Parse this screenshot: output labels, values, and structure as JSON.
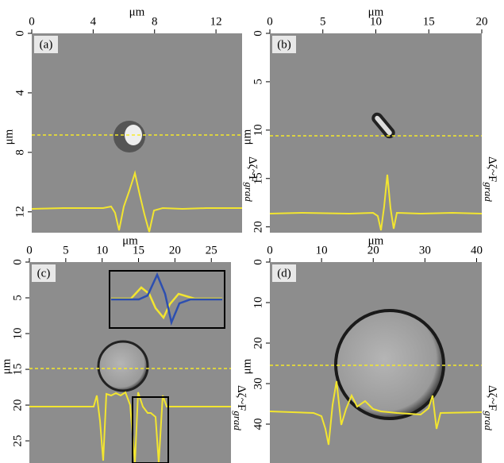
{
  "panels": [
    {
      "label": "(a)",
      "x_label": "μm",
      "y_label": "μm",
      "side_label": "Δζ~F",
      "side_label_sub": "grad",
      "xlim": [
        0,
        13.7
      ],
      "xticks": [
        0,
        4,
        8,
        12
      ],
      "ylim": [
        0,
        13.4
      ],
      "yticks": [
        0,
        4,
        8,
        12
      ]
    },
    {
      "label": "(b)",
      "x_label": "μm",
      "y_label": "μm",
      "side_label": "Δζ~F",
      "side_label_sub": "grad",
      "xlim": [
        0,
        20
      ],
      "xticks": [
        0,
        5,
        10,
        15,
        20
      ],
      "ylim": [
        0,
        20.6
      ],
      "yticks": [
        0,
        5,
        10,
        15,
        20
      ]
    },
    {
      "label": "(c)",
      "x_label": "μm",
      "y_label": "μm",
      "side_label": "Δζ~F",
      "side_label_sub": "grad",
      "xlim": [
        0,
        27.7
      ],
      "xticks": [
        0,
        5,
        10,
        15,
        20,
        25
      ],
      "ylim": [
        0,
        28.1
      ],
      "yticks": [
        0,
        5,
        10,
        15,
        20,
        25
      ]
    },
    {
      "label": "(d)",
      "x_label": "μm",
      "y_label": "μm",
      "side_label": "Δζ~F",
      "side_label_sub": "grad",
      "xlim": [
        0,
        41
      ],
      "xticks": [
        0,
        10,
        20,
        30,
        40
      ],
      "ylim": [
        0,
        49.6
      ],
      "yticks": [
        0,
        10,
        20,
        30,
        40
      ]
    }
  ]
}
